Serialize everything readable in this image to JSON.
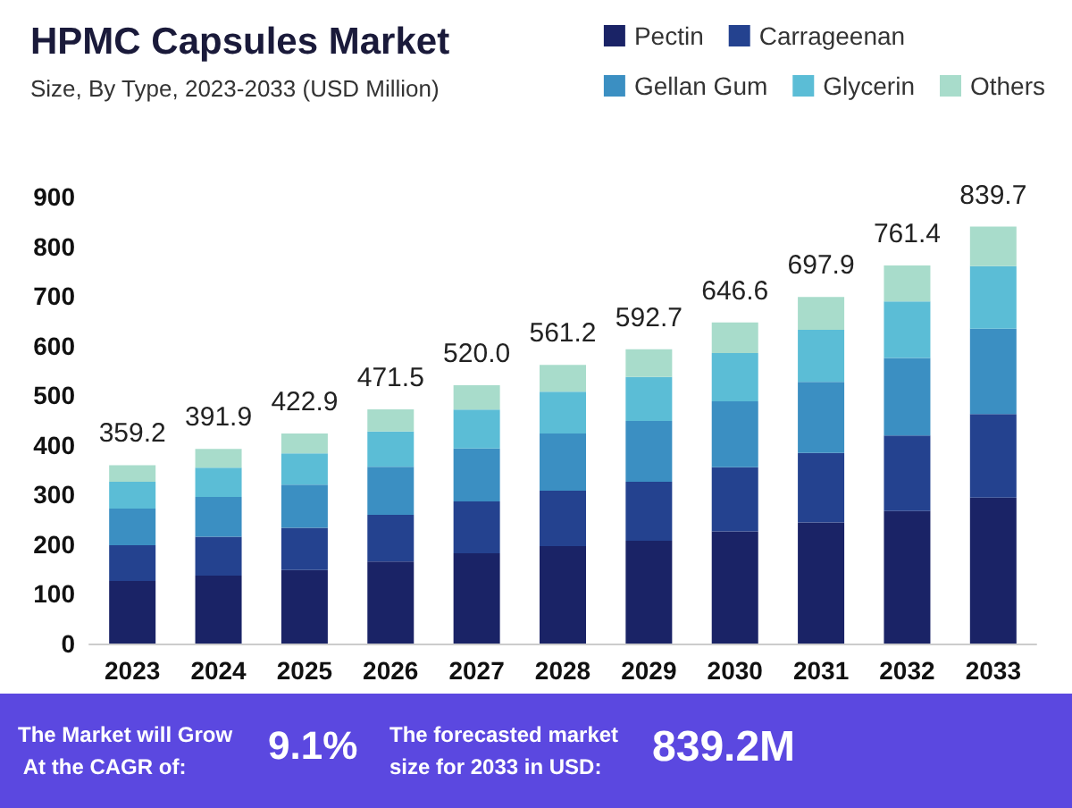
{
  "chart_data": {
    "type": "bar",
    "title": "HPMC Capsules Market",
    "subtitle": "Size, By Type, 2023-2033 (USD Million)",
    "categories": [
      "2023",
      "2024",
      "2025",
      "2026",
      "2027",
      "2028",
      "2029",
      "2030",
      "2031",
      "2032",
      "2033"
    ],
    "stacked": true,
    "series": [
      {
        "name": "Pectin",
        "color": "#1a2366",
        "values": [
          126,
          137,
          148,
          165,
          182,
          196,
          207,
          226,
          244,
          267,
          294
        ]
      },
      {
        "name": "Carrageenan",
        "color": "#24428f",
        "values": [
          72,
          78,
          85,
          94,
          104,
          112,
          119,
          129,
          140,
          152,
          168
        ]
      },
      {
        "name": "Gellan Gum",
        "color": "#3b8fc2",
        "values": [
          74,
          80,
          87,
          97,
          107,
          115,
          122,
          133,
          143,
          156,
          172
        ]
      },
      {
        "name": "Glycerin",
        "color": "#5bbdd6",
        "values": [
          54,
          59,
          63,
          71,
          78,
          84,
          89,
          97,
          105,
          114,
          126
        ]
      },
      {
        "name": "Others",
        "color": "#a8dccb",
        "values": [
          33.2,
          37.9,
          39.9,
          44.5,
          49,
          54.2,
          55.7,
          61.6,
          65.9,
          72.4,
          79.7
        ]
      }
    ],
    "totals": [
      "359.2",
      "391.9",
      "422.9",
      "471.5",
      "520.0",
      "561.2",
      "592.7",
      "646.6",
      "697.9",
      "761.4",
      "839.7"
    ],
    "ylim": [
      0,
      900
    ],
    "yticks": [
      0,
      100,
      200,
      300,
      400,
      500,
      600,
      700,
      800,
      900
    ],
    "grid": false,
    "legend": "top right",
    "annotations": [
      "The Market will Grow At the CAGR of:",
      "9.1%",
      "The forecasted market size for 2033 in USD:",
      "839.2M"
    ]
  }
}
